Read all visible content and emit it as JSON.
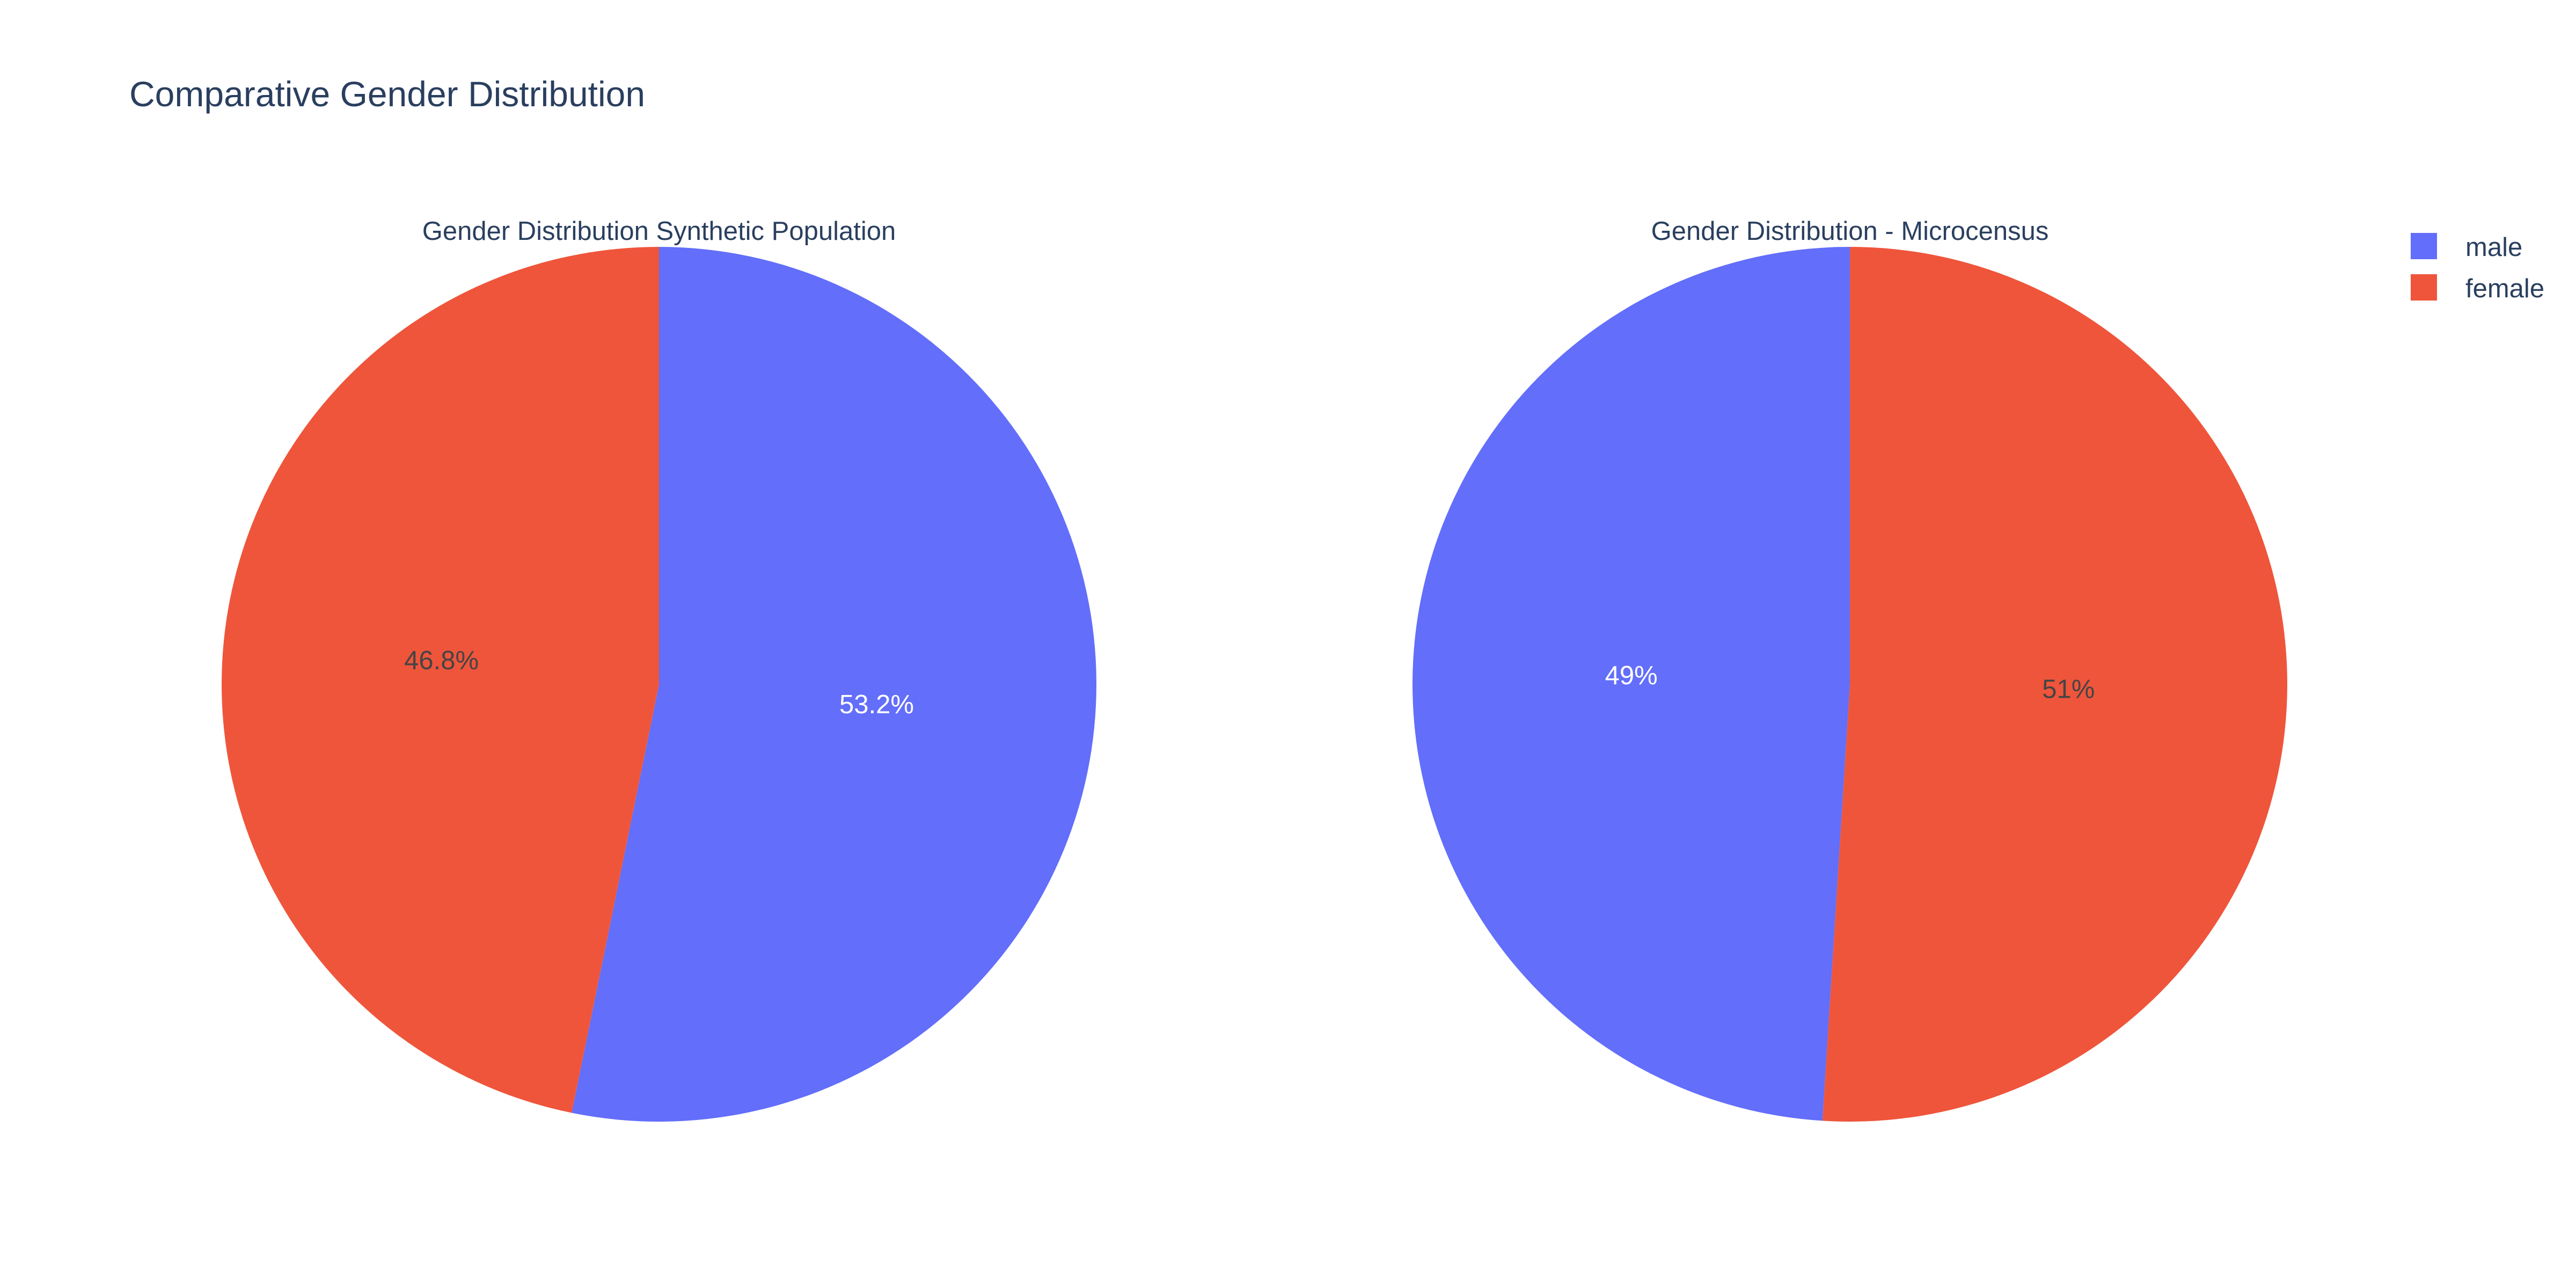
{
  "colors": {
    "male": "#636efa",
    "female": "#ef553b",
    "title_text": "#2a3f5f"
  },
  "chart_data": {
    "type": "pie",
    "title": "Comparative Gender Distribution",
    "legend": {
      "placement": "top-right",
      "entries": [
        {
          "name": "male",
          "color": "#636efa"
        },
        {
          "name": "female",
          "color": "#ef553b"
        }
      ]
    },
    "pies": [
      {
        "title": "Gender Distribution Synthetic Population",
        "slices": [
          {
            "label": "male",
            "value": 53.2,
            "text": "53.2%",
            "text_color": "#ffffff"
          },
          {
            "label": "female",
            "value": 46.8,
            "text": "46.8%",
            "text_color": "#444444"
          }
        ]
      },
      {
        "title": "Gender Distribution - Microcensus",
        "slices": [
          {
            "label": "female",
            "value": 51,
            "text": "51%",
            "text_color": "#444444"
          },
          {
            "label": "male",
            "value": 49,
            "text": "49%",
            "text_color": "#ffffff"
          }
        ]
      }
    ]
  }
}
